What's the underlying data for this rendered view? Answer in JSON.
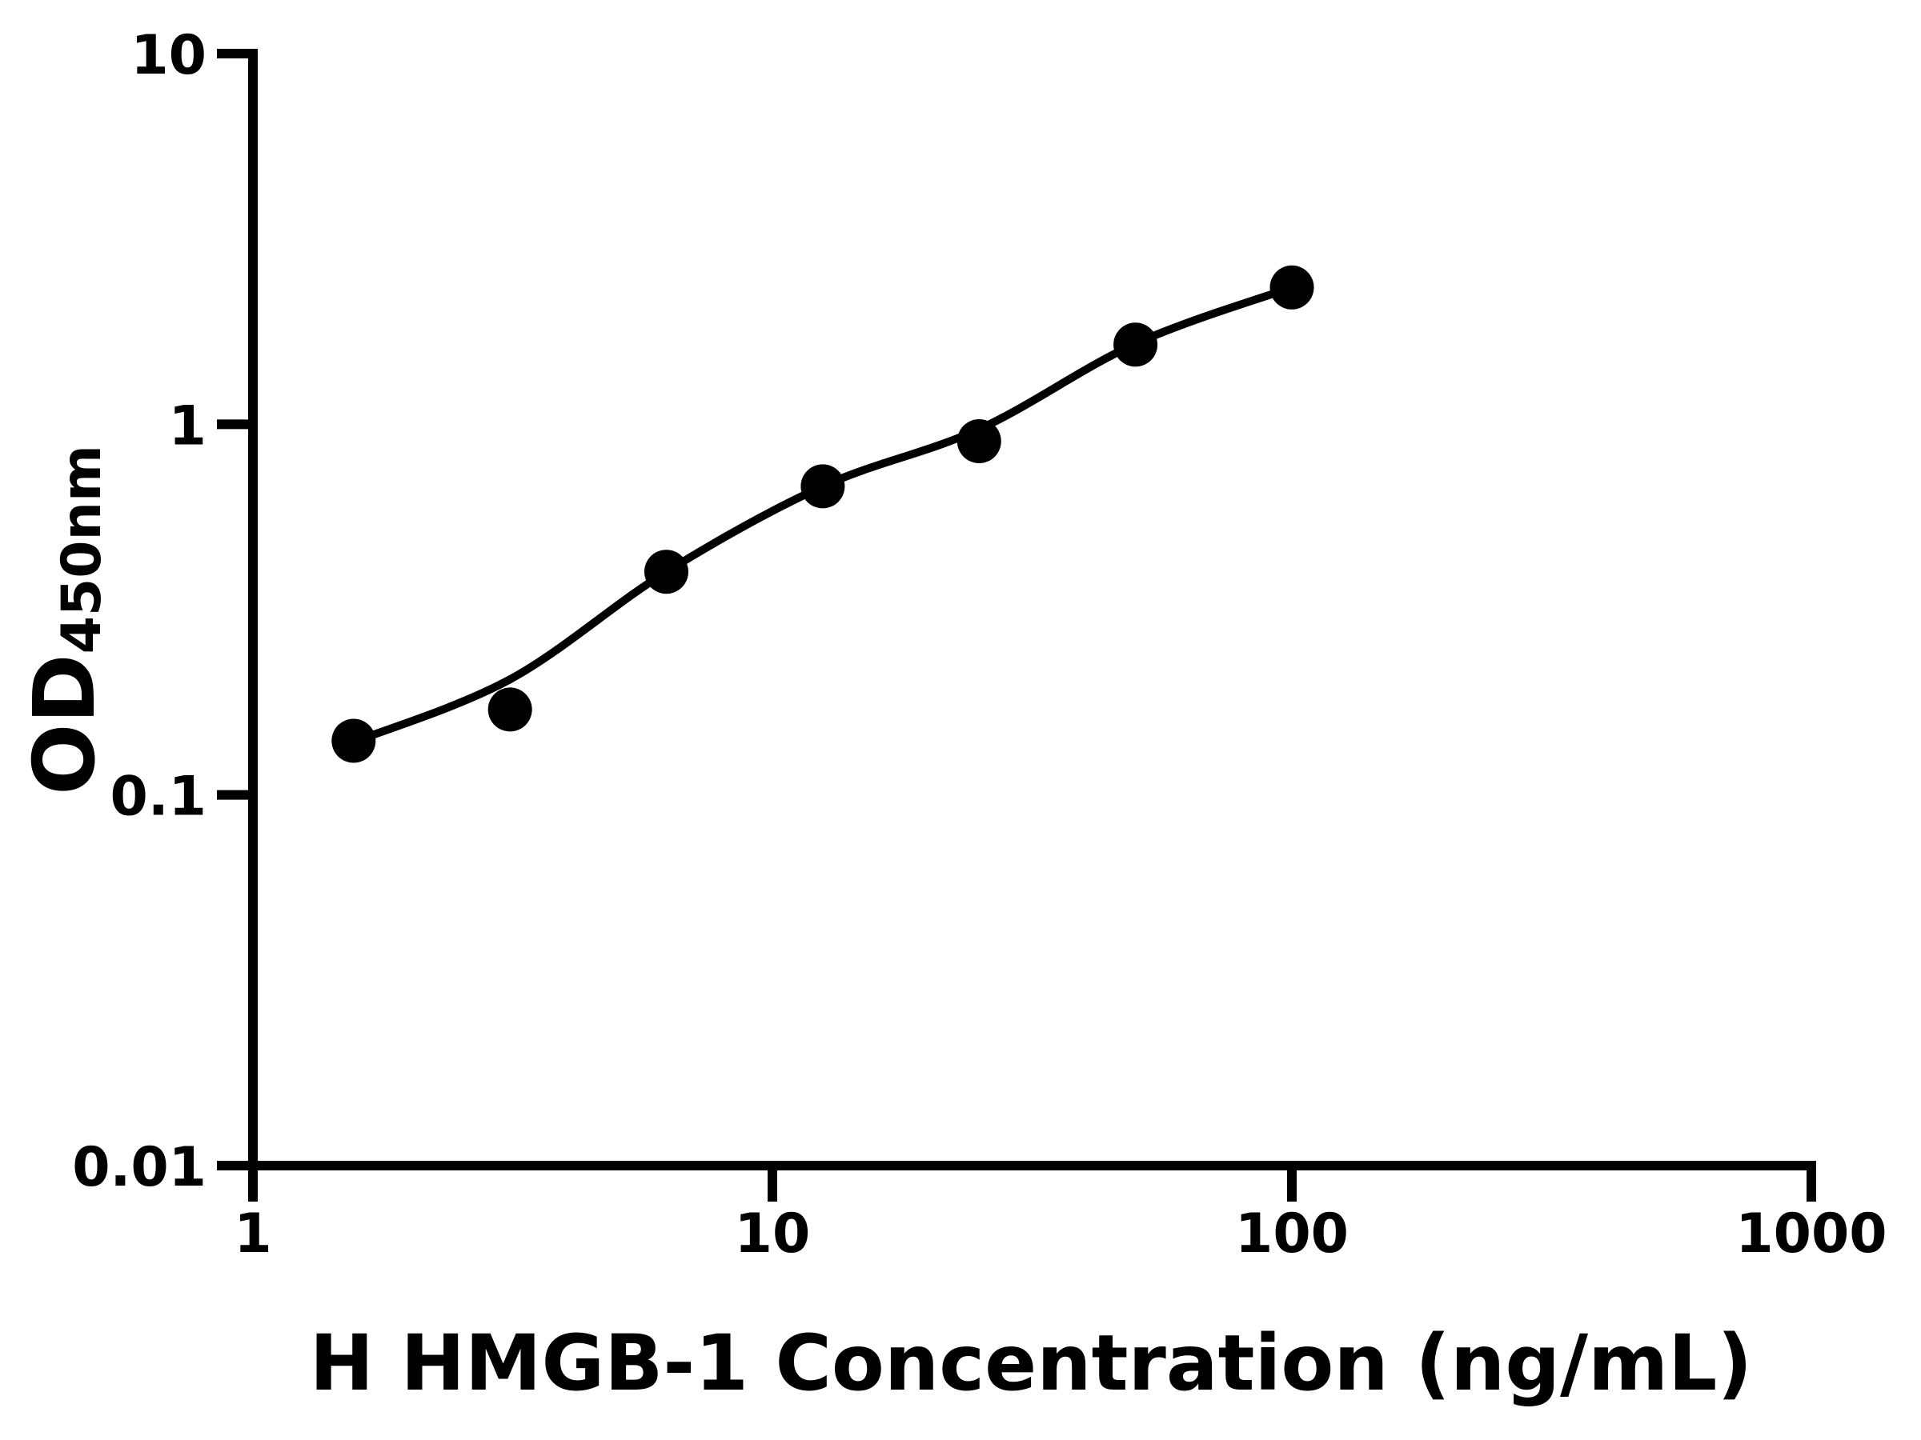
{
  "figure": {
    "background": "#ffffff",
    "ink": "#000000"
  },
  "chart_data": {
    "type": "scatter",
    "title": "",
    "xlabel": "H HMGB-1 Concentration (ng/mL)",
    "ylabel": "OD",
    "ylabel_sub": "450nm",
    "x_scale": "log10",
    "y_scale": "log10",
    "xlim": [
      1,
      1000
    ],
    "ylim": [
      0.01,
      10
    ],
    "grid": false,
    "legend_position": "none",
    "x_ticks": [
      {
        "v": 1,
        "label": "1"
      },
      {
        "v": 10,
        "label": "10"
      },
      {
        "v": 100,
        "label": "100"
      },
      {
        "v": 1000,
        "label": "1000"
      }
    ],
    "y_ticks": [
      {
        "v": 10,
        "label": "10"
      },
      {
        "v": 1,
        "label": "1"
      },
      {
        "v": 0.1,
        "label": "0.1"
      },
      {
        "v": 0.01,
        "label": "0.01"
      }
    ],
    "series": [
      {
        "name": "standard-points",
        "marker": "circle",
        "color": "#000000",
        "x": [
          1.5625,
          3.125,
          6.25,
          12.5,
          25,
          50,
          100
        ],
        "y": [
          0.14,
          0.17,
          0.4,
          0.68,
          0.9,
          1.64,
          2.34
        ]
      }
    ],
    "fit_curve": {
      "name": "fit-line",
      "color": "#000000",
      "points": [
        [
          1.5625,
          0.139
        ],
        [
          3.125,
          0.205
        ],
        [
          6.25,
          0.4
        ],
        [
          12.5,
          0.68
        ],
        [
          25,
          0.97
        ],
        [
          50,
          1.65
        ],
        [
          100,
          2.34
        ]
      ]
    }
  }
}
